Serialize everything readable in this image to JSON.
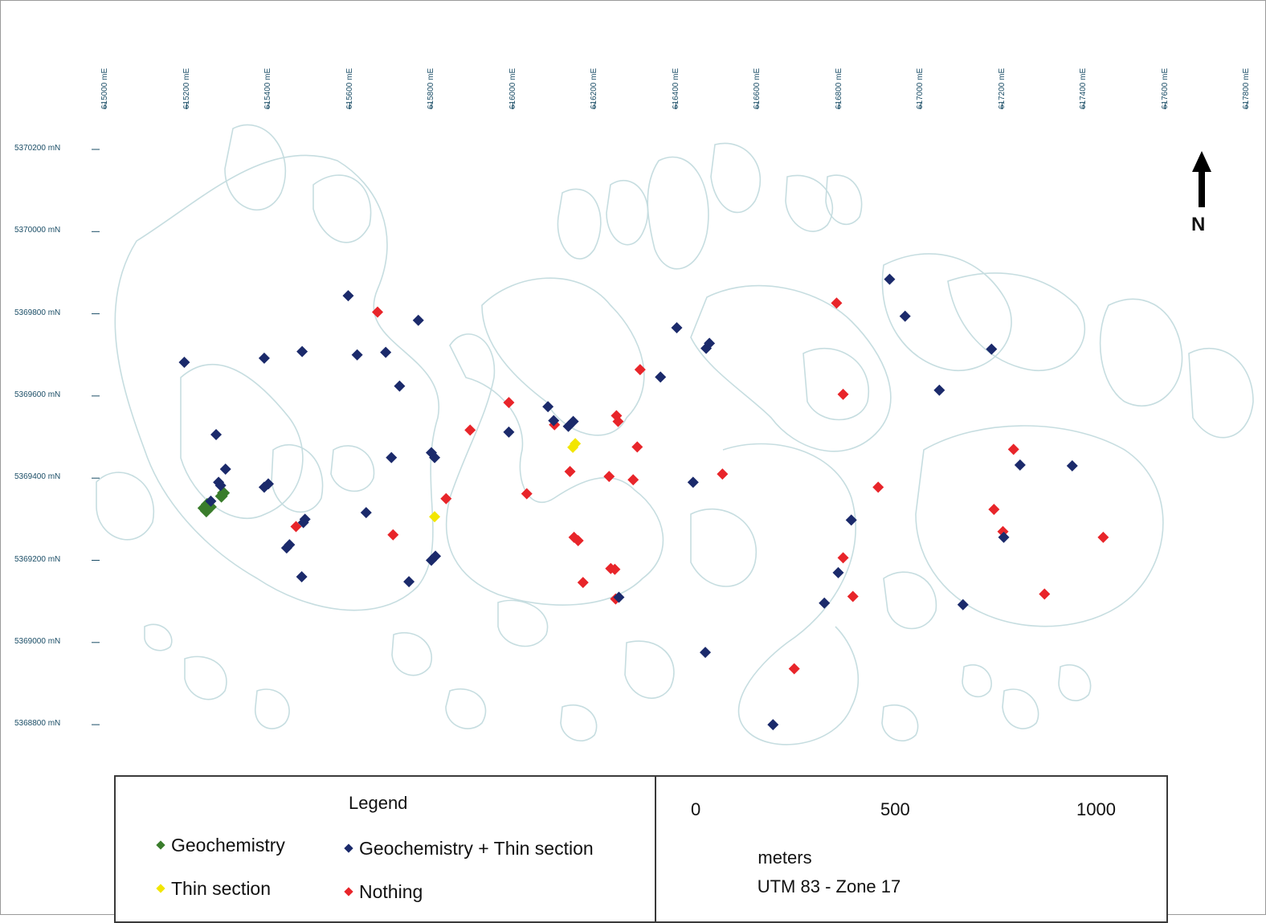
{
  "map": {
    "easting_labels": [
      "615000 mE",
      "615200 mE",
      "615400 mE",
      "615600 mE",
      "615800 mE",
      "616000 mE",
      "616200 mE",
      "616400 mE",
      "616600 mE",
      "616800 mE",
      "617000 mE",
      "617200 mE",
      "617400 mE",
      "617600 mE",
      "617800 mE"
    ],
    "northing_labels": [
      "5370200 mN",
      "5370000 mN",
      "5369800 mN",
      "5369600 mN",
      "5369400 mN",
      "5369200 mN",
      "5369000 mN",
      "5368800 mN"
    ],
    "north_arrow_label": "N",
    "colors": {
      "geochemistry": "#3a7d2c",
      "geochem_thin": "#1b2a6b",
      "thin_section": "#f2e600",
      "nothing": "#e8252a",
      "outcrop_outline": "#c6dde0",
      "grid_text": "#1a4d66"
    },
    "samples": {
      "geochemistry": [
        [
          615242,
          5369327
        ],
        [
          615250,
          5369336
        ],
        [
          615258,
          5369330
        ],
        [
          615248,
          5369320
        ],
        [
          615290,
          5369364
        ],
        [
          615285,
          5369356
        ]
      ],
      "thin_section": [
        [
          616147,
          5369475
        ],
        [
          616153,
          5369484
        ],
        [
          615808,
          5369306
        ]
      ],
      "nothing": [
        [
          615668,
          5369804
        ],
        [
          615468,
          5369282
        ],
        [
          615706,
          5369262
        ],
        [
          615836,
          5369350
        ],
        [
          615895,
          5369517
        ],
        [
          615990,
          5369584
        ],
        [
          616034,
          5369362
        ],
        [
          616102,
          5369530
        ],
        [
          616140,
          5369416
        ],
        [
          616150,
          5369256
        ],
        [
          616160,
          5369248
        ],
        [
          616172,
          5369146
        ],
        [
          616236,
          5369404
        ],
        [
          616240,
          5369180
        ],
        [
          616250,
          5369178
        ],
        [
          616254,
          5369552
        ],
        [
          616258,
          5369538
        ],
        [
          616252,
          5369106
        ],
        [
          616295,
          5369396
        ],
        [
          616305,
          5369476
        ],
        [
          616312,
          5369664
        ],
        [
          616514,
          5369410
        ],
        [
          616690,
          5368936
        ],
        [
          616794,
          5369826
        ],
        [
          616810,
          5369604
        ],
        [
          616810,
          5369206
        ],
        [
          616834,
          5369112
        ],
        [
          616896,
          5369378
        ],
        [
          617180,
          5369324
        ],
        [
          617202,
          5369270
        ],
        [
          617228,
          5369470
        ],
        [
          617304,
          5369118
        ],
        [
          617448,
          5369256
        ]
      ],
      "geochem_thin": [
        [
          615194,
          5369682
        ],
        [
          615259,
          5369344
        ],
        [
          615272,
          5369506
        ],
        [
          615278,
          5369390
        ],
        [
          615283,
          5369382
        ],
        [
          615295,
          5369422
        ],
        [
          615390,
          5369692
        ],
        [
          615400,
          5369386
        ],
        [
          615390,
          5369378
        ],
        [
          615483,
          5369708
        ],
        [
          615490,
          5369300
        ],
        [
          615486,
          5369292
        ],
        [
          615445,
          5369230
        ],
        [
          615452,
          5369238
        ],
        [
          615482,
          5369160
        ],
        [
          615596,
          5369844
        ],
        [
          615618,
          5369700
        ],
        [
          615640,
          5369316
        ],
        [
          615688,
          5369706
        ],
        [
          615702,
          5369450
        ],
        [
          615722,
          5369624
        ],
        [
          615745,
          5369148
        ],
        [
          615768,
          5369784
        ],
        [
          615800,
          5369462
        ],
        [
          615808,
          5369450
        ],
        [
          615800,
          5369200
        ],
        [
          615810,
          5369210
        ],
        [
          615990,
          5369512
        ],
        [
          616086,
          5369574
        ],
        [
          616100,
          5369540
        ],
        [
          616136,
          5369526
        ],
        [
          616148,
          5369538
        ],
        [
          616260,
          5369110
        ],
        [
          616362,
          5369646
        ],
        [
          616402,
          5369766
        ],
        [
          616442,
          5369390
        ],
        [
          616474,
          5369716
        ],
        [
          616482,
          5369728
        ],
        [
          616472,
          5368976
        ],
        [
          616638,
          5368800
        ],
        [
          616764,
          5369096
        ],
        [
          616798,
          5369170
        ],
        [
          616830,
          5369298
        ],
        [
          616924,
          5369884
        ],
        [
          616962,
          5369794
        ],
        [
          617046,
          5369614
        ],
        [
          617104,
          5369092
        ],
        [
          617174,
          5369714
        ],
        [
          617204,
          5369256
        ],
        [
          617244,
          5369432
        ],
        [
          617372,
          5369430
        ]
      ]
    }
  },
  "legend": {
    "title": "Legend",
    "geochemistry": "Geochemistry",
    "geochem_thin": "Geochemistry + Thin section",
    "thin_section": "Thin section",
    "nothing": "Nothing"
  },
  "scale": {
    "ticks": [
      "0",
      "500",
      "1000"
    ],
    "units": "meters",
    "projection": "UTM 83 - Zone 17"
  }
}
